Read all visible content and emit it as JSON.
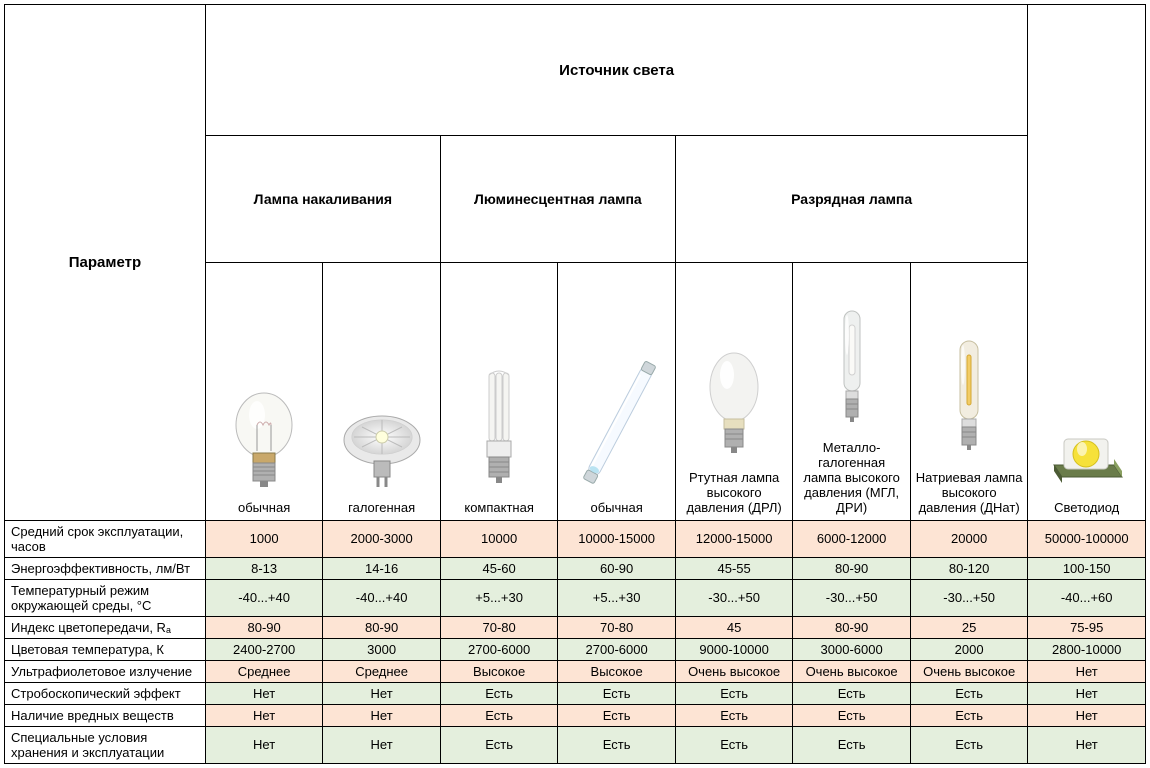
{
  "colors": {
    "peach": "#fde4d4",
    "green": "#e4efdd",
    "border": "#000000",
    "text": "#000000",
    "bg": "#ffffff"
  },
  "fontsize": {
    "main": 15,
    "group": 14,
    "body": 13
  },
  "header": {
    "main": "Источник света",
    "groups": [
      "Лампа накаливания",
      "Люминесцентная лампа",
      "Разрядная лампа"
    ],
    "param_label": "Параметр"
  },
  "columns": [
    {
      "key": "c1",
      "caption": "обычная",
      "icon": "incandescent"
    },
    {
      "key": "c2",
      "caption": "галогенная",
      "icon": "halogen"
    },
    {
      "key": "c3",
      "caption": "компактная",
      "icon": "cfl"
    },
    {
      "key": "c4",
      "caption": "обычная",
      "icon": "tube"
    },
    {
      "key": "c5",
      "caption": "Ртутная лампа высокого давления (ДРЛ)",
      "icon": "mercury"
    },
    {
      "key": "c6",
      "caption": "Металло-галогенная лампа высокого давления (МГЛ, ДРИ)",
      "icon": "mh"
    },
    {
      "key": "c7",
      "caption": "Натриевая лампа высокого давления (ДНат)",
      "icon": "sodium"
    },
    {
      "key": "c8",
      "caption": "Светодиод",
      "icon": "led"
    }
  ],
  "rows": [
    {
      "label": "Средний срок эксплуатации, часов",
      "color": "peach",
      "cells": [
        "1000",
        "2000-3000",
        "10000",
        "10000-15000",
        "12000-15000",
        "6000-12000",
        "20000",
        "50000-100000"
      ]
    },
    {
      "label": "Энергоэффективность, лм/Вт",
      "color": "green",
      "cells": [
        "8-13",
        "14-16",
        "45-60",
        "60-90",
        "45-55",
        "80-90",
        "80-120",
        "100-150"
      ]
    },
    {
      "label": "Температурный режим окружающей среды, °С",
      "color": "green",
      "cells": [
        "-40...+40",
        "-40...+40",
        "+5...+30",
        "+5...+30",
        "-30...+50",
        "-30...+50",
        "-30...+50",
        "-40...+60"
      ]
    },
    {
      "label": "Индекс цветопередачи, Rₐ",
      "color": "peach",
      "cells": [
        "80-90",
        "80-90",
        "70-80",
        "70-80",
        "45",
        "80-90",
        "25",
        "75-95"
      ]
    },
    {
      "label": "Цветовая температура, К",
      "color": "green",
      "cells": [
        "2400-2700",
        "3000",
        "2700-6000",
        "2700-6000",
        "9000-10000",
        "3000-6000",
        "2000",
        "2800-10000"
      ]
    },
    {
      "label": "Ультрафиолетовое излучение",
      "color": "peach",
      "cells": [
        "Среднее",
        "Среднее",
        "Высокое",
        "Высокое",
        "Очень высокое",
        "Очень высокое",
        "Очень высокое",
        "Нет"
      ]
    },
    {
      "label": "Стробоскопический эффект",
      "color": "green",
      "cells": [
        "Нет",
        "Нет",
        "Есть",
        "Есть",
        "Есть",
        "Есть",
        "Есть",
        "Нет"
      ]
    },
    {
      "label": "Наличие вредных веществ",
      "color": "peach",
      "cells": [
        "Нет",
        "Нет",
        "Есть",
        "Есть",
        "Есть",
        "Есть",
        "Есть",
        "Нет"
      ]
    },
    {
      "label": "Специальные условия хранения и эксплуатации",
      "color": "green",
      "cells": [
        "Нет",
        "Нет",
        "Есть",
        "Есть",
        "Есть",
        "Есть",
        "Есть",
        "Нет"
      ]
    }
  ]
}
